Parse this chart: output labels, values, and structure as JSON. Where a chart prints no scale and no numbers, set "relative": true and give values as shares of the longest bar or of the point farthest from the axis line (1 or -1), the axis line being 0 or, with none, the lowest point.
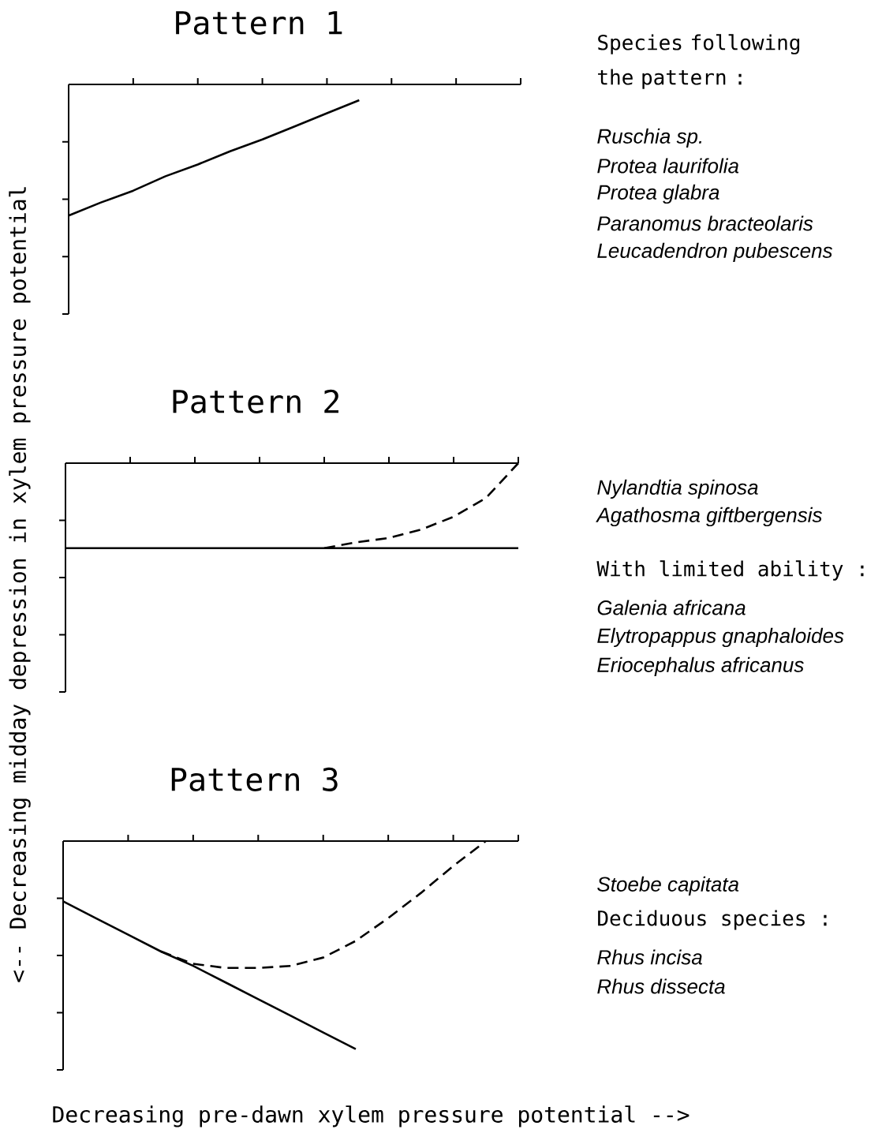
{
  "chart_data": [
    {
      "type": "line",
      "title": "Pattern 1",
      "relative": true,
      "categories": [
        null,
        null,
        null,
        null,
        null,
        null,
        null,
        null,
        null,
        null,
        null,
        null,
        null,
        null,
        null
      ],
      "series": [
        {
          "color": "#000000",
          "line_style": "solid",
          "values": [
            -1,
            -0.9,
            -0.81,
            -0.7,
            -0.61,
            -0.51,
            -0.42,
            -0.32,
            -0.22,
            -0.12,
            null,
            null,
            null,
            null,
            null
          ]
        }
      ],
      "annotations": [
        "Species following the pattern :",
        "*Ruschia sp.*",
        "*Protea laurifolia*",
        "*Protea glabra*",
        "*Paranomus bracteolaris*",
        "*Leucadendron pubescens*"
      ]
    },
    {
      "type": "line",
      "title": "Pattern 2",
      "relative": true,
      "categories": [
        null,
        null,
        null,
        null,
        null,
        null,
        null,
        null,
        null,
        null,
        null,
        null,
        null,
        null,
        null
      ],
      "ylabel": "<-- Decreasing midday depression in xylem pressure potential",
      "series": [
        {
          "color": "#000000",
          "line_style": "solid",
          "values": [
            -1,
            -1,
            -1,
            -1,
            -1,
            -1,
            -1,
            -1,
            -1,
            -1,
            -1,
            -1,
            -1,
            -1,
            -1
          ]
        },
        {
          "color": "#000000",
          "line_style": "dashed",
          "values": [
            null,
            null,
            null,
            null,
            null,
            null,
            null,
            null,
            -1,
            -0.93,
            -0.88,
            -0.78,
            -0.63,
            -0.41,
            0
          ]
        }
      ],
      "annotations": [
        "*Nylandtia spinosa*",
        "*Agathosma giftbergensis*",
        "With limited ability :",
        "*Galenia africana*",
        "*Elytropappus gnaphaloides*",
        "*Eriocephalus africanus*"
      ]
    },
    {
      "type": "line",
      "title": "Pattern 3",
      "relative": true,
      "categories": [
        null,
        null,
        null,
        null,
        null,
        null,
        null,
        null,
        null,
        null,
        null,
        null,
        null,
        null,
        null
      ],
      "xlabel": "Decreasing pre-dawn xylem pressure potential -->",
      "series": [
        {
          "color": "#000000",
          "line_style": "solid",
          "values": [
            -0.29,
            -0.37,
            -0.45,
            -0.53,
            -0.6,
            -0.68,
            -0.76,
            -0.84,
            -0.92,
            -1,
            null,
            null,
            null,
            null,
            null
          ]
        },
        {
          "color": "#000000",
          "line_style": "dashed",
          "values": [
            null,
            null,
            null,
            -0.53,
            -0.59,
            -0.61,
            -0.61,
            -0.6,
            -0.56,
            -0.48,
            -0.37,
            -0.25,
            -0.12,
            0,
            null
          ]
        }
      ],
      "annotations": [
        "*Stoebe capitata*",
        "Deciduous species :",
        "*Rhus incisa*",
        "*Rhus dissecta*"
      ]
    }
  ]
}
